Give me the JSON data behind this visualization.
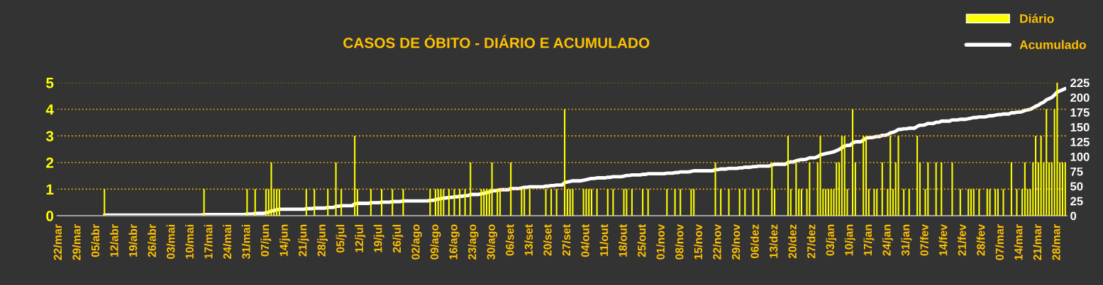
{
  "chart_data": {
    "type": "bar",
    "title": "CASOS DE ÓBITO - DIÁRIO E ACUMULADO",
    "categories": [
      "22/mar",
      null,
      null,
      null,
      null,
      null,
      null,
      "29/mar",
      null,
      null,
      null,
      null,
      null,
      null,
      "05/abr",
      null,
      null,
      null,
      null,
      null,
      null,
      "12/abr",
      null,
      null,
      null,
      null,
      null,
      null,
      "19/abr",
      null,
      null,
      null,
      null,
      null,
      null,
      "26/abr",
      null,
      null,
      null,
      null,
      null,
      null,
      "03/mai",
      null,
      null,
      null,
      null,
      null,
      null,
      "10/mai",
      null,
      null,
      null,
      null,
      null,
      null,
      "17/mai",
      null,
      null,
      null,
      null,
      null,
      null,
      "24/mai",
      null,
      null,
      null,
      null,
      null,
      null,
      "31/mai",
      null,
      null,
      null,
      null,
      null,
      null,
      "07/jun",
      null,
      null,
      null,
      null,
      null,
      null,
      "14/jun",
      null,
      null,
      null,
      null,
      null,
      null,
      "21/jun",
      null,
      null,
      null,
      null,
      null,
      null,
      "28/jun",
      null,
      null,
      null,
      null,
      null,
      null,
      "05/jul",
      null,
      null,
      null,
      null,
      null,
      null,
      "12/jul",
      null,
      null,
      null,
      null,
      null,
      null,
      "19/jul",
      null,
      null,
      null,
      null,
      null,
      null,
      "26/jul",
      null,
      null,
      null,
      null,
      null,
      null,
      "02/ago",
      null,
      null,
      null,
      null,
      null,
      null,
      "09/ago",
      null,
      null,
      null,
      null,
      null,
      null,
      "16/ago",
      null,
      null,
      null,
      null,
      null,
      null,
      "23/ago",
      null,
      null,
      null,
      null,
      null,
      null,
      "30/ago",
      null,
      null,
      null,
      null,
      null,
      null,
      "06/set",
      null,
      null,
      null,
      null,
      null,
      null,
      "13/set",
      null,
      null,
      null,
      null,
      null,
      null,
      "20/set",
      null,
      null,
      null,
      null,
      null,
      null,
      "27/set",
      null,
      null,
      null,
      null,
      null,
      null,
      "04/out",
      null,
      null,
      null,
      null,
      null,
      null,
      "11/out",
      null,
      null,
      null,
      null,
      null,
      null,
      "18/out",
      null,
      null,
      null,
      null,
      null,
      null,
      "25/out",
      null,
      null,
      null,
      null,
      null,
      null,
      "01/nov",
      null,
      null,
      null,
      null,
      null,
      null,
      "08/nov",
      null,
      null,
      null,
      null,
      null,
      null,
      "15/nov",
      null,
      null,
      null,
      null,
      null,
      null,
      "22/nov",
      null,
      null,
      null,
      null,
      null,
      null,
      "29/nov",
      null,
      null,
      null,
      null,
      null,
      null,
      "06/dez",
      null,
      null,
      null,
      null,
      null,
      null,
      "13/dez",
      null,
      null,
      null,
      null,
      null,
      null,
      "20/dez",
      null,
      null,
      null,
      null,
      null,
      null,
      "27/dez",
      null,
      null,
      null,
      null,
      null,
      null,
      "03/jan",
      null,
      null,
      null,
      null,
      null,
      null,
      "10/jan",
      null,
      null,
      null,
      null,
      null,
      null,
      "17/jan",
      null,
      null,
      null,
      null,
      null,
      null,
      "24/jan",
      null,
      null,
      null,
      null,
      null,
      null,
      "31/jan",
      null,
      null,
      null,
      null,
      null,
      null,
      "07/fev",
      null,
      null,
      null,
      null,
      null,
      null,
      "14/fev",
      null,
      null,
      null,
      null,
      null,
      null,
      "21/fev",
      null,
      null,
      null,
      null,
      null,
      null,
      "28/fev",
      null,
      null,
      null,
      null,
      null,
      null,
      "07/mar",
      null,
      null,
      null,
      null,
      null,
      null,
      "14/mar",
      null,
      null,
      null,
      null,
      null,
      null,
      "21/mar",
      null,
      null,
      null,
      null,
      null,
      null,
      "28/mar",
      null,
      null,
      null
    ],
    "series": [
      {
        "name": "Diário",
        "color": "#ffff00",
        "values": [
          0,
          0,
          0,
          0,
          0,
          0,
          0,
          0,
          0,
          0,
          0,
          0,
          0,
          0,
          0,
          0,
          0,
          1,
          0,
          0,
          0,
          0,
          0,
          0,
          0,
          0,
          0,
          0,
          0,
          0,
          0,
          0,
          0,
          0,
          0,
          0,
          0,
          0,
          0,
          0,
          0,
          0,
          0,
          0,
          0,
          0,
          0,
          0,
          0,
          0,
          0,
          0,
          0,
          0,
          1,
          0,
          0,
          0,
          0,
          0,
          0,
          0,
          0,
          0,
          0,
          0,
          0,
          0,
          0,
          0,
          1,
          0,
          0,
          1,
          0,
          0,
          0,
          1,
          1,
          2,
          1,
          1,
          1,
          0,
          0,
          0,
          0,
          0,
          0,
          0,
          0,
          0,
          1,
          0,
          0,
          1,
          0,
          0,
          0,
          0,
          1,
          0,
          0,
          2,
          0,
          1,
          0,
          0,
          0,
          0,
          3,
          1,
          0,
          0,
          0,
          0,
          1,
          0,
          0,
          0,
          1,
          0,
          0,
          0,
          1,
          0,
          0,
          0,
          1,
          0,
          0,
          0,
          0,
          0,
          0,
          0,
          0,
          0,
          1,
          0,
          1,
          1,
          1,
          1,
          0,
          1,
          0,
          1,
          0,
          1,
          0,
          1,
          0,
          2,
          0,
          0,
          0,
          1,
          1,
          1,
          1,
          2,
          0,
          1,
          1,
          0,
          0,
          0,
          2,
          0,
          0,
          0,
          1,
          1,
          0,
          1,
          0,
          0,
          0,
          0,
          0,
          1,
          0,
          1,
          0,
          1,
          0,
          0,
          4,
          1,
          1,
          1,
          0,
          0,
          0,
          1,
          1,
          1,
          1,
          0,
          1,
          0,
          0,
          0,
          1,
          0,
          1,
          0,
          0,
          0,
          1,
          1,
          0,
          1,
          0,
          0,
          0,
          1,
          0,
          1,
          0,
          0,
          0,
          0,
          0,
          0,
          1,
          0,
          0,
          1,
          0,
          1,
          0,
          0,
          0,
          1,
          1,
          0,
          0,
          0,
          0,
          0,
          0,
          0,
          2,
          0,
          1,
          0,
          0,
          1,
          0,
          0,
          0,
          1,
          0,
          1,
          0,
          0,
          1,
          0,
          1,
          0,
          0,
          0,
          0,
          2,
          1,
          0,
          0,
          0,
          0,
          3,
          1,
          0,
          2,
          1,
          1,
          0,
          1,
          2,
          0,
          0,
          2,
          3,
          1,
          1,
          1,
          1,
          1,
          2,
          2,
          3,
          3,
          1,
          0,
          4,
          2,
          0,
          0,
          3,
          3,
          1,
          0,
          1,
          1,
          0,
          2,
          0,
          1,
          3,
          1,
          2,
          3,
          0,
          1,
          0,
          1,
          0,
          0,
          3,
          2,
          0,
          1,
          2,
          0,
          0,
          2,
          0,
          2,
          0,
          0,
          0,
          2,
          0,
          0,
          1,
          0,
          0,
          1,
          1,
          1,
          0,
          1,
          0,
          0,
          1,
          1,
          0,
          1,
          1,
          0,
          1,
          0,
          0,
          2,
          0,
          1,
          0,
          1,
          2,
          1,
          1,
          2,
          3,
          2,
          3,
          2,
          4,
          2,
          2,
          4,
          5,
          2,
          2,
          2
        ]
      },
      {
        "name": "Acumulado",
        "type": "line",
        "color": "#ffffff",
        "axis": "y2",
        "values": [
          null,
          null,
          null,
          null,
          null,
          null,
          null,
          null,
          null,
          null,
          null,
          null,
          null,
          null,
          null,
          null,
          null,
          1,
          1,
          1,
          1,
          1,
          1,
          1,
          1,
          1,
          1,
          1,
          1,
          1,
          1,
          1,
          1,
          1,
          1,
          1,
          1,
          1,
          1,
          1,
          1,
          1,
          1,
          1,
          1,
          1,
          1,
          1,
          1,
          1,
          1,
          1,
          1,
          1,
          2,
          2,
          2,
          2,
          2,
          2,
          2,
          2,
          2,
          2,
          2,
          2,
          2,
          2,
          2,
          2,
          3,
          3,
          3,
          4,
          4,
          4,
          4,
          5,
          6,
          8,
          9,
          10,
          11,
          11,
          11,
          11,
          11,
          11,
          11,
          11,
          11,
          11,
          12,
          12,
          12,
          13,
          13,
          13,
          13,
          13,
          14,
          14,
          14,
          16,
          16,
          17,
          17,
          17,
          17,
          17,
          20,
          21,
          21,
          21,
          21,
          21,
          22,
          22,
          22,
          22,
          23,
          23,
          23,
          23,
          24,
          24,
          24,
          24,
          25,
          25,
          25,
          25,
          25,
          25,
          25,
          25,
          25,
          25,
          26,
          26,
          27,
          28,
          29,
          30,
          30,
          31,
          31,
          32,
          32,
          33,
          33,
          34,
          34,
          36,
          36,
          36,
          36,
          37,
          38,
          39,
          40,
          42,
          42,
          43,
          44,
          44,
          44,
          44,
          46,
          46,
          46,
          46,
          47,
          48,
          48,
          49,
          49,
          49,
          49,
          49,
          49,
          50,
          50,
          51,
          51,
          52,
          52,
          52,
          56,
          57,
          58,
          59,
          59,
          59,
          59,
          60,
          61,
          62,
          63,
          63,
          64,
          64,
          64,
          64,
          65,
          65,
          66,
          66,
          66,
          66,
          67,
          68,
          68,
          69,
          69,
          69,
          69,
          70,
          70,
          71,
          71,
          71,
          71,
          71,
          71,
          71,
          72,
          72,
          72,
          73,
          73,
          74,
          74,
          74,
          74,
          75,
          76,
          76,
          76,
          76,
          76,
          76,
          76,
          76,
          78,
          78,
          79,
          79,
          79,
          80,
          80,
          80,
          80,
          81,
          81,
          82,
          82,
          82,
          83,
          83,
          84,
          84,
          84,
          84,
          84,
          86,
          87,
          87,
          87,
          87,
          87,
          90,
          91,
          91,
          93,
          94,
          95,
          95,
          96,
          98,
          98,
          98,
          100,
          103,
          104,
          105,
          106,
          107,
          108,
          110,
          112,
          115,
          118,
          119,
          119,
          123,
          125,
          125,
          125,
          128,
          131,
          132,
          132,
          133,
          134,
          134,
          136,
          136,
          137,
          140,
          141,
          143,
          146,
          146,
          147,
          147,
          148,
          148,
          148,
          151,
          153,
          153,
          154,
          156,
          156,
          156,
          158,
          158,
          160,
          160,
          160,
          160,
          162,
          162,
          162,
          163,
          163,
          163,
          164,
          165,
          166,
          166,
          167,
          167,
          167,
          168,
          169,
          169,
          170,
          171,
          171,
          172,
          172,
          172,
          174,
          174,
          175,
          175,
          176,
          178,
          179,
          180,
          182,
          185,
          187,
          190,
          192,
          196,
          198,
          200,
          204,
          209,
          211,
          213,
          215
        ]
      }
    ],
    "ylim": [
      0,
      5
    ],
    "yticks": [
      0,
      1,
      2,
      3,
      4,
      5
    ],
    "y2lim": [
      0,
      225
    ],
    "y2ticks": [
      0,
      25,
      50,
      75,
      100,
      125,
      150,
      175,
      200,
      225
    ],
    "grid": "y",
    "legend": "top right"
  }
}
